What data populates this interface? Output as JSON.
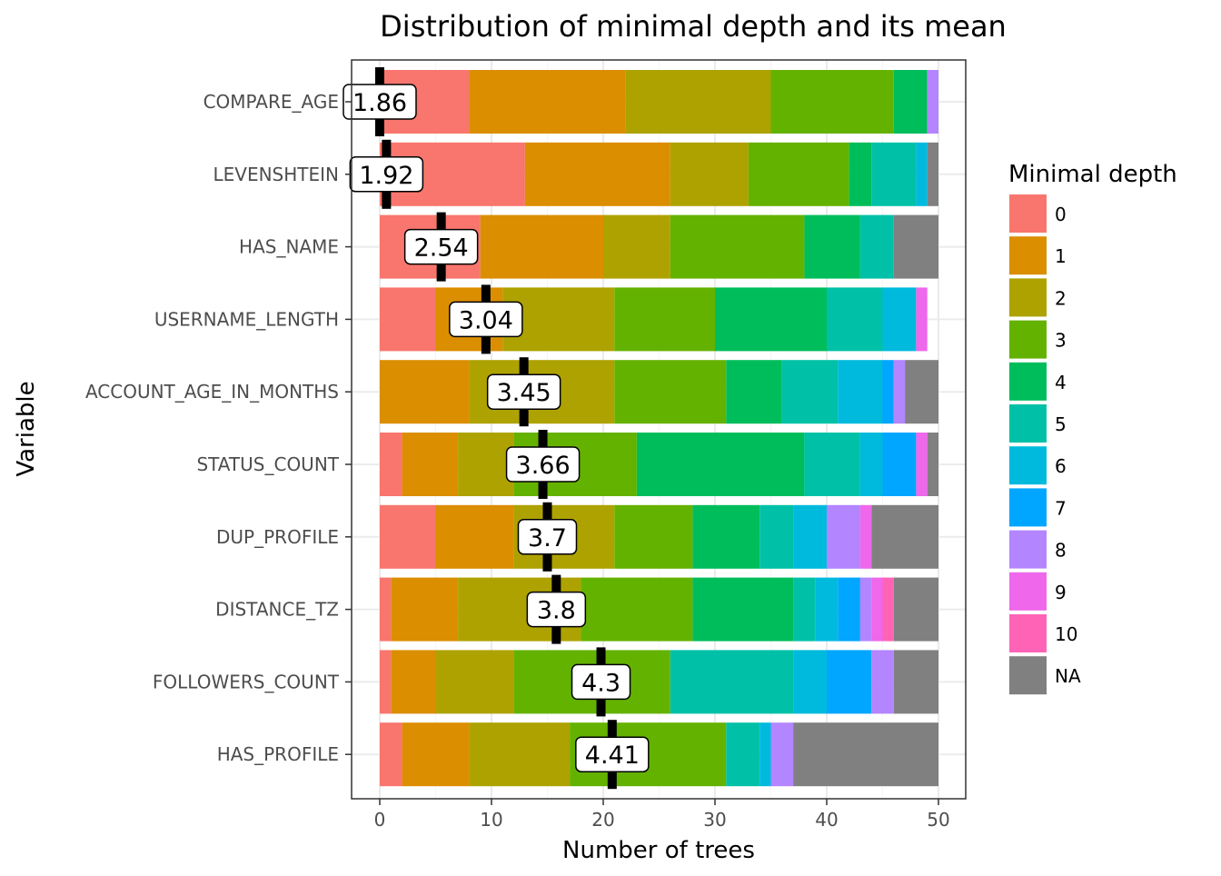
{
  "chart_data": {
    "type": "bar",
    "orientation": "horizontal",
    "stacked": true,
    "title": "Distribution of minimal depth and its mean",
    "xlabel": "Number of trees",
    "ylabel": "Variable",
    "xlim": [
      0,
      50
    ],
    "x_ticks": [
      0,
      10,
      20,
      30,
      40,
      50
    ],
    "grid": true,
    "legend": {
      "title": "Minimal depth",
      "position": "right"
    },
    "categories": [
      "COMPARE_AGE",
      "LEVENSHTEIN",
      "HAS_NAME",
      "USERNAME_LENGTH",
      "ACCOUNT_AGE_IN_MONTHS",
      "STATUS_COUNT",
      "DUP_PROFILE",
      "DISTANCE_TZ",
      "FOLLOWERS_COUNT",
      "HAS_PROFILE"
    ],
    "series": [
      {
        "name": "0",
        "color": "#F8766D",
        "values": [
          8,
          13,
          9,
          5,
          0,
          2,
          5,
          1,
          1,
          2
        ]
      },
      {
        "name": "1",
        "color": "#DB8E00",
        "values": [
          14,
          13,
          11,
          6,
          8,
          5,
          7,
          6,
          4,
          6
        ]
      },
      {
        "name": "2",
        "color": "#AEA200",
        "values": [
          13,
          7,
          6,
          10,
          13,
          5,
          9,
          11,
          7,
          9
        ]
      },
      {
        "name": "3",
        "color": "#64B200",
        "values": [
          11,
          9,
          12,
          9,
          10,
          11,
          7,
          10,
          14,
          14
        ]
      },
      {
        "name": "4",
        "color": "#00BD5C",
        "values": [
          3,
          2,
          5,
          10,
          5,
          15,
          6,
          9,
          0,
          0
        ]
      },
      {
        "name": "5",
        "color": "#00C1A7",
        "values": [
          0,
          4,
          3,
          5,
          5,
          5,
          3,
          2,
          11,
          3
        ]
      },
      {
        "name": "6",
        "color": "#00BADE",
        "values": [
          0,
          1,
          0,
          3,
          4,
          2,
          3,
          2,
          3,
          1
        ]
      },
      {
        "name": "7",
        "color": "#00A6FF",
        "values": [
          0,
          0,
          0,
          0,
          1,
          3,
          0,
          2,
          4,
          0
        ]
      },
      {
        "name": "8",
        "color": "#B385FF",
        "values": [
          1,
          0,
          0,
          0,
          1,
          0,
          3,
          1,
          2,
          2
        ]
      },
      {
        "name": "9",
        "color": "#EF67EB",
        "values": [
          0,
          0,
          0,
          1,
          0,
          1,
          1,
          1,
          0,
          0
        ]
      },
      {
        "name": "10",
        "color": "#FF63B6",
        "values": [
          0,
          0,
          0,
          0,
          0,
          0,
          0,
          1,
          0,
          0
        ]
      },
      {
        "name": "NA",
        "color": "#808080",
        "values": [
          0,
          1,
          4,
          0,
          3,
          1,
          6,
          4,
          4,
          13
        ]
      }
    ],
    "mean_minimal_depth": {
      "values": [
        1.86,
        1.92,
        2.54,
        3.04,
        3.45,
        3.66,
        3.7,
        3.8,
        4.3,
        4.41
      ],
      "labels": [
        "1.86",
        "1.92",
        "2.54",
        "3.04",
        "3.45",
        "3.66",
        "3.7",
        "3.8",
        "4.3",
        "4.41"
      ],
      "marker_x": [
        0,
        0.6,
        5.5,
        9.5,
        12.9,
        14.6,
        15,
        15.8,
        19.8,
        20.8
      ]
    }
  }
}
